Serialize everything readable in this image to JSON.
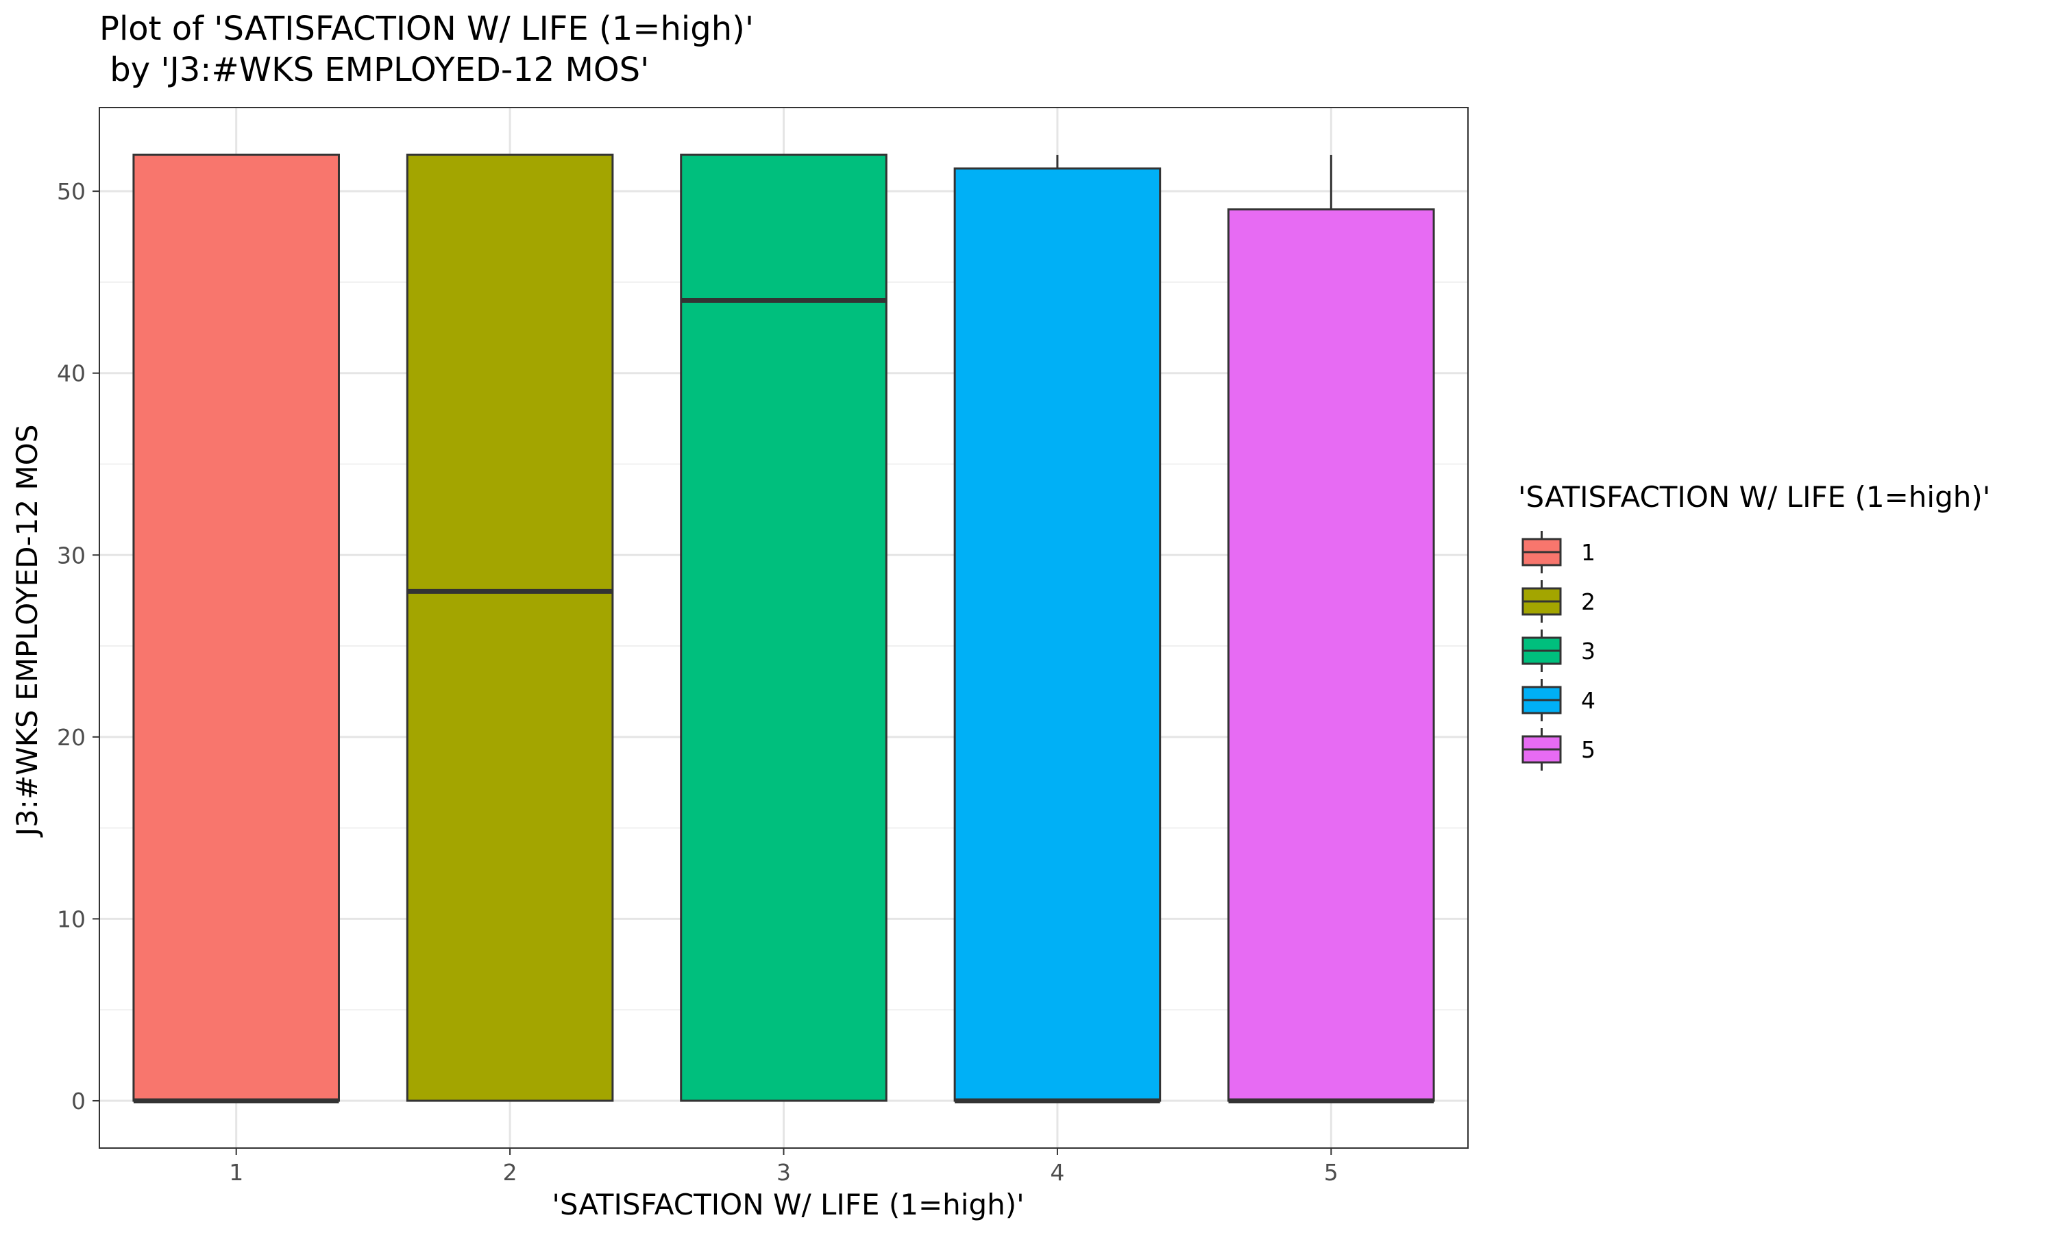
{
  "chart_data": {
    "type": "boxplot",
    "title_line1": "Plot of 'SATISFACTION W/ LIFE (1=high)'",
    "title_line2": " by 'J3:#WKS EMPLOYED-12 MOS'",
    "xlabel": "'SATISFACTION W/ LIFE (1=high)'",
    "ylabel": "J3:#WKS EMPLOYED-12 MOS",
    "categories": [
      "1",
      "2",
      "3",
      "4",
      "5"
    ],
    "boxes": [
      {
        "category": "1",
        "lower_whisker": 0,
        "q1": 0,
        "median": 0,
        "q3": 52,
        "upper_whisker": 52,
        "color": "#F8766D"
      },
      {
        "category": "2",
        "lower_whisker": 0,
        "q1": 0,
        "median": 28,
        "q3": 52,
        "upper_whisker": 52,
        "color": "#A3A500"
      },
      {
        "category": "3",
        "lower_whisker": 0,
        "q1": 0,
        "median": 44,
        "q3": 52,
        "upper_whisker": 52,
        "color": "#00BF7D"
      },
      {
        "category": "4",
        "lower_whisker": 0,
        "q1": 0,
        "median": 0,
        "q3": 51.25,
        "upper_whisker": 52,
        "color": "#00B0F6"
      },
      {
        "category": "5",
        "lower_whisker": 0,
        "q1": 0,
        "median": 0,
        "q3": 49,
        "upper_whisker": 52,
        "color": "#E76BF3"
      }
    ],
    "yticks": [
      0,
      10,
      20,
      30,
      40,
      50
    ],
    "ylim": [
      -2.6,
      54.6
    ],
    "grid": true,
    "legend": {
      "title": "'SATISFACTION W/ LIFE (1=high)'",
      "position": "right",
      "entries": [
        "1",
        "2",
        "3",
        "4",
        "5"
      ]
    }
  }
}
